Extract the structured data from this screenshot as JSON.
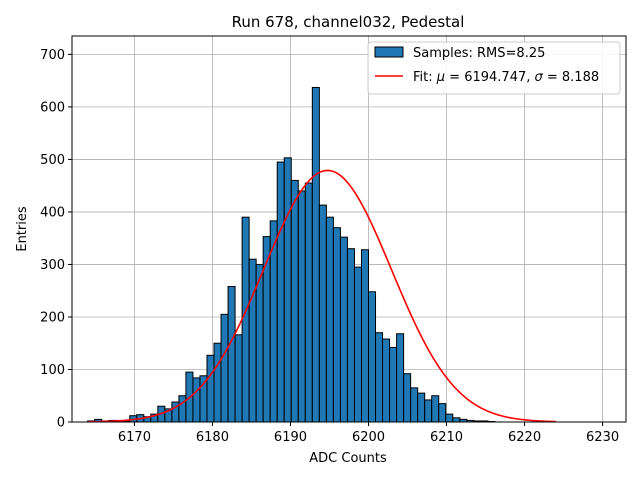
{
  "chart_data": {
    "type": "bar",
    "title": "Run 678, channel032, Pedestal",
    "xlabel": "ADC Counts",
    "ylabel": "Entries",
    "xlim": [
      6162,
      6233
    ],
    "ylim": [
      0,
      735
    ],
    "xticks": [
      6170,
      6180,
      6190,
      6200,
      6210,
      6220,
      6230
    ],
    "yticks": [
      0,
      100,
      200,
      300,
      400,
      500,
      600,
      700
    ],
    "grid": true,
    "legend_position": "top-right",
    "bar_color": "#1f77b4",
    "fit_color": "#ff0000",
    "histogram": {
      "name": "Samples: RMS=8.25",
      "bin_start": 6164,
      "bin_width": 0.9,
      "counts": [
        2,
        5,
        2,
        3,
        3,
        2,
        12,
        14,
        10,
        15,
        30,
        25,
        38,
        50,
        95,
        84,
        88,
        127,
        150,
        205,
        258,
        166,
        390,
        310,
        300,
        353,
        383,
        495,
        503,
        460,
        440,
        455,
        637,
        413,
        390,
        370,
        352,
        330,
        295,
        328,
        248,
        170,
        158,
        142,
        168,
        92,
        65,
        55,
        42,
        50,
        35,
        15,
        8,
        5,
        3,
        2,
        2,
        1
      ]
    },
    "fit": {
      "name": "Fit: $\\mu$ = 6194.747, $\\sigma$ = 8.188",
      "mu": 6194.747,
      "sigma": 8.188,
      "amplitude": 479,
      "x_range": [
        6164,
        6224
      ]
    }
  }
}
